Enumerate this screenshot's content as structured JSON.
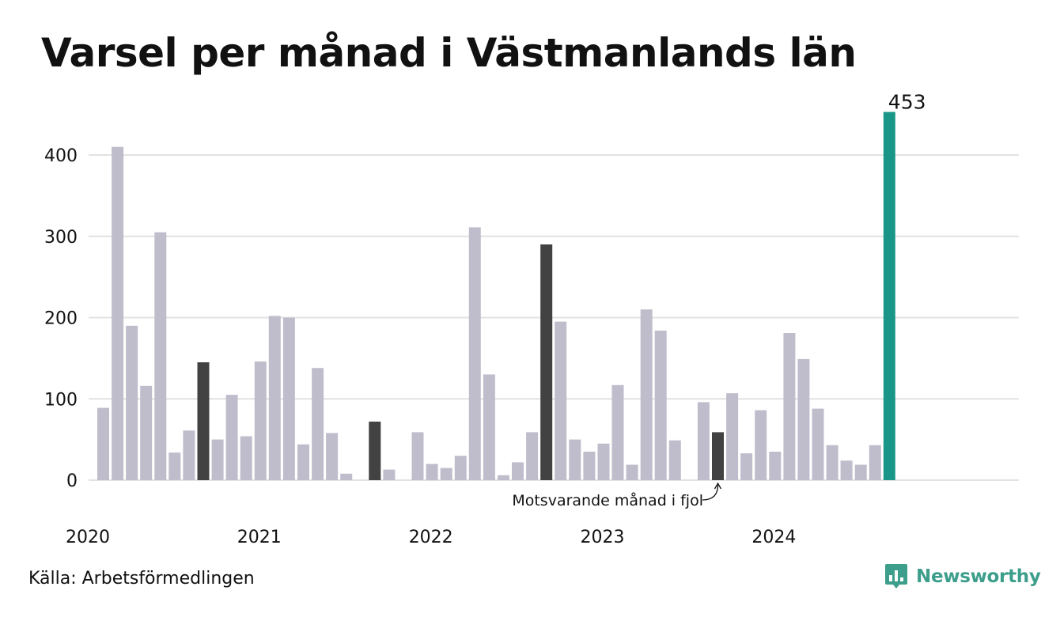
{
  "title": "Varsel per månad i Västmanlands län",
  "source": "Källa: Arbetsförmedlingen",
  "brand": {
    "name": "Newsworthy",
    "icon": "newsworthy-logo-icon"
  },
  "colors": {
    "default_bar": "#bfbdcb",
    "highlight_bar": "#424242",
    "latest_bar": "#1a9688",
    "grid": "#e2e2e2",
    "brand": "#3c9e8b"
  },
  "chart_data": {
    "type": "bar",
    "title": "Varsel per månad i Västmanlands län",
    "xlabel": "",
    "ylabel": "",
    "ylim": [
      0,
      460
    ],
    "yticks": [
      0,
      100,
      200,
      300,
      400
    ],
    "grid": true,
    "x_tick_labels": [
      {
        "label": "2020",
        "index": 0
      },
      {
        "label": "2021",
        "index": 12
      },
      {
        "label": "2022",
        "index": 24
      },
      {
        "label": "2023",
        "index": 36
      },
      {
        "label": "2024",
        "index": 48
      }
    ],
    "values": [
      89,
      410,
      190,
      116,
      305,
      34,
      61,
      145,
      50,
      105,
      54,
      146,
      202,
      200,
      44,
      138,
      58,
      8,
      0,
      72,
      13,
      0,
      59,
      20,
      15,
      30,
      311,
      130,
      6,
      22,
      59,
      290,
      195,
      50,
      35,
      45,
      117,
      19,
      210,
      184,
      49,
      0,
      96,
      59,
      107,
      33,
      86,
      35,
      181,
      149,
      88,
      43,
      24,
      19,
      43,
      453
    ],
    "highlighted_indices": [
      7,
      19,
      31,
      43
    ],
    "latest_index": 55,
    "latest_value_label": "453",
    "annotation": {
      "text": "Motsvarande månad i fjol",
      "index": 43
    }
  }
}
